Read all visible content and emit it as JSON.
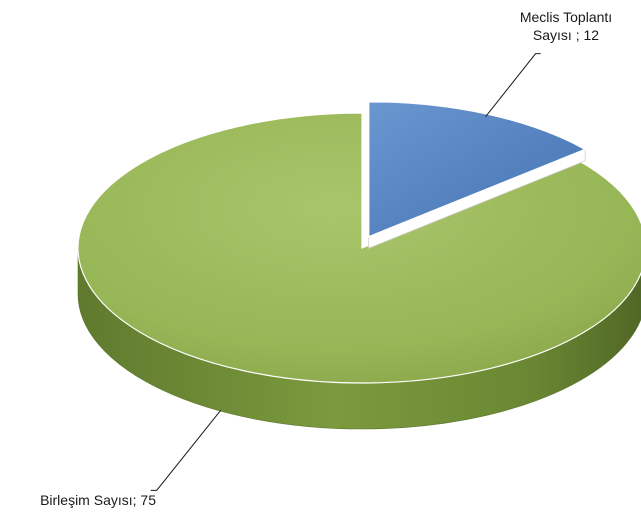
{
  "chart_data": {
    "type": "pie",
    "title": "",
    "slices": [
      {
        "label": "Meclis Toplantı Sayısı",
        "value": 12,
        "label_lines": [
          "Meclis Toplantı",
          "Sayısı ; 12"
        ],
        "color": "#4f81bd",
        "exploded": true
      },
      {
        "label": "Birleşim Sayısı",
        "value": 75,
        "label_lines": [
          "Birleşim Sayısı; 75"
        ],
        "color": "#9bbb59",
        "exploded": false
      }
    ],
    "style": "3d-exploded",
    "legend": "none"
  }
}
